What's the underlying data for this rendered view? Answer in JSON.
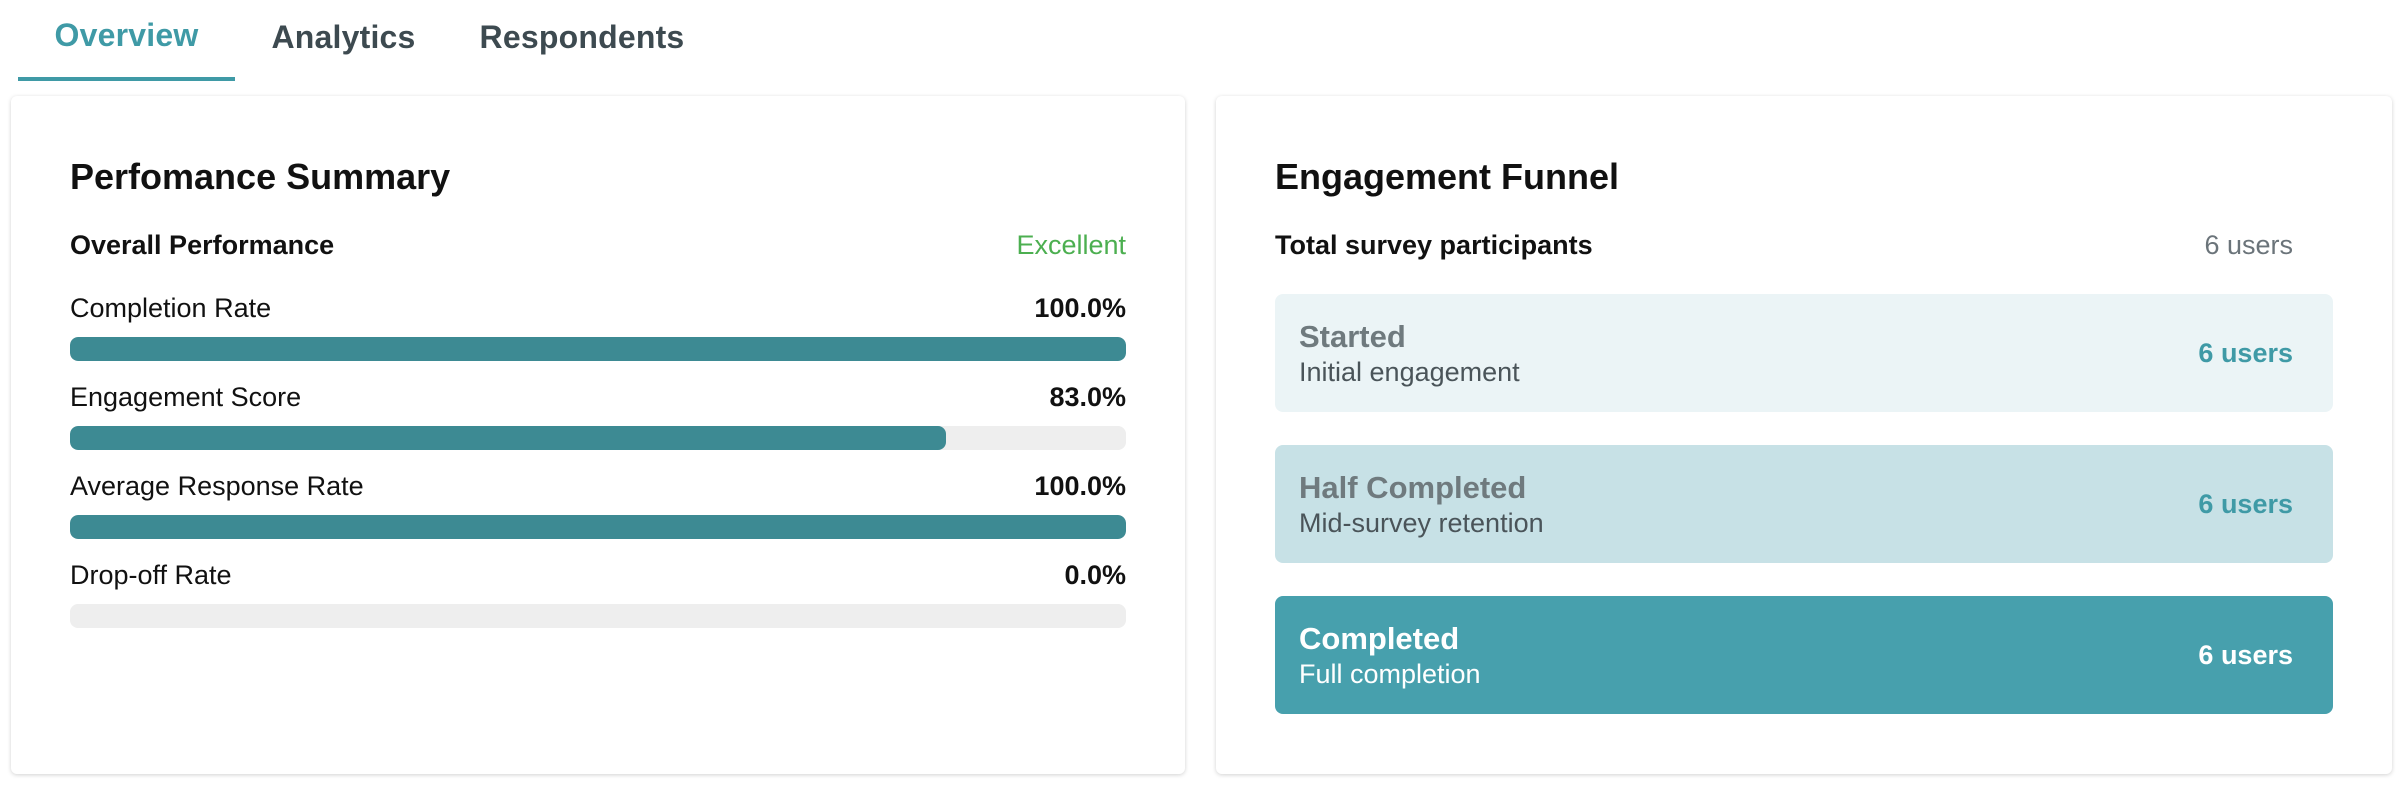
{
  "tabs": [
    {
      "label": "Overview",
      "active": true
    },
    {
      "label": "Analytics",
      "active": false
    },
    {
      "label": "Respondents",
      "active": false
    }
  ],
  "colors": {
    "accent": "#3f9aa6",
    "bar": "#3d8a93",
    "excellent": "#4caf50",
    "stage_started": "#ebf4f6",
    "stage_half": "#c7e1e6",
    "stage_completed": "#47a0ad"
  },
  "performance": {
    "title": "Perfomance Summary",
    "overall_label": "Overall Performance",
    "overall_value": "Excellent",
    "metrics": [
      {
        "label": "Completion Rate",
        "value_text": "100.0%",
        "percent": 100
      },
      {
        "label": "Engagement Score",
        "value_text": "83.0%",
        "percent": 83
      },
      {
        "label": "Average Response Rate",
        "value_text": "100.0%",
        "percent": 100
      },
      {
        "label": "Drop-off Rate",
        "value_text": "0.0%",
        "percent": 0
      }
    ]
  },
  "funnel": {
    "title": "Engagement Funnel",
    "total_label": "Total survey participants",
    "total_value": "6 users",
    "stages": [
      {
        "name": "Started",
        "description": "Initial engagement",
        "count": "6 users"
      },
      {
        "name": "Half Completed",
        "description": "Mid-survey retention",
        "count": "6 users"
      },
      {
        "name": "Completed",
        "description": "Full completion",
        "count": "6 users"
      }
    ]
  }
}
